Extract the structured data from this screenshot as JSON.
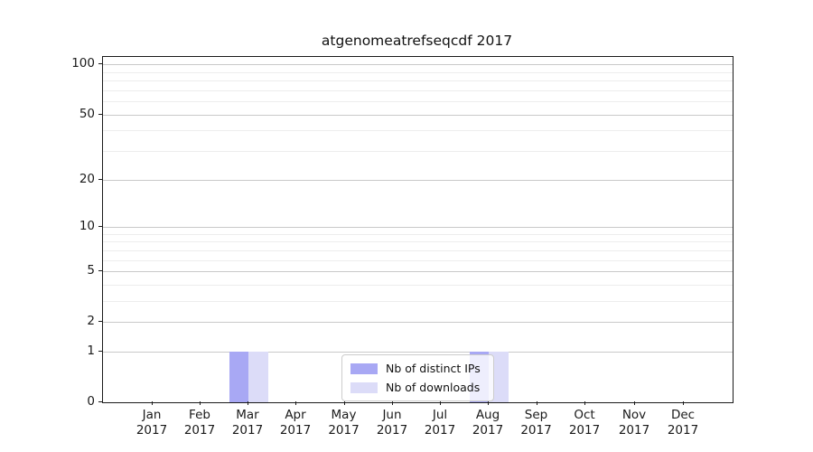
{
  "chart_data": {
    "type": "bar",
    "title": "atgenomeatrefseqcdf 2017",
    "categories": [
      "Jan 2017",
      "Feb 2017",
      "Mar 2017",
      "Apr 2017",
      "May 2017",
      "Jun 2017",
      "Jul 2017",
      "Aug 2017",
      "Sep 2017",
      "Oct 2017",
      "Nov 2017",
      "Dec 2017"
    ],
    "series": [
      {
        "name": "Nb of distinct IPs",
        "color": "#a8a8f4",
        "values": [
          0,
          0,
          1,
          0,
          0,
          0,
          0,
          1,
          0,
          0,
          0,
          0
        ]
      },
      {
        "name": "Nb of downloads",
        "color": "#dcdcf8",
        "values": [
          0,
          0,
          1,
          0,
          0,
          0,
          0,
          1,
          0,
          0,
          0,
          0
        ]
      }
    ],
    "yscale": "log1p",
    "ylim": [
      0,
      111
    ],
    "yticks_major": [
      0,
      1,
      2,
      5,
      10,
      20,
      50,
      100
    ],
    "yticks_minor": [
      3,
      4,
      6,
      7,
      8,
      9,
      30,
      40,
      60,
      70,
      80,
      90
    ],
    "grid": "horizontal",
    "legend_position": "lower-center",
    "colors": {
      "grid_major": "#c9c9c9",
      "grid_minor": "#ededed",
      "frame": "#1a1a1a",
      "background": "#ffffff"
    }
  }
}
